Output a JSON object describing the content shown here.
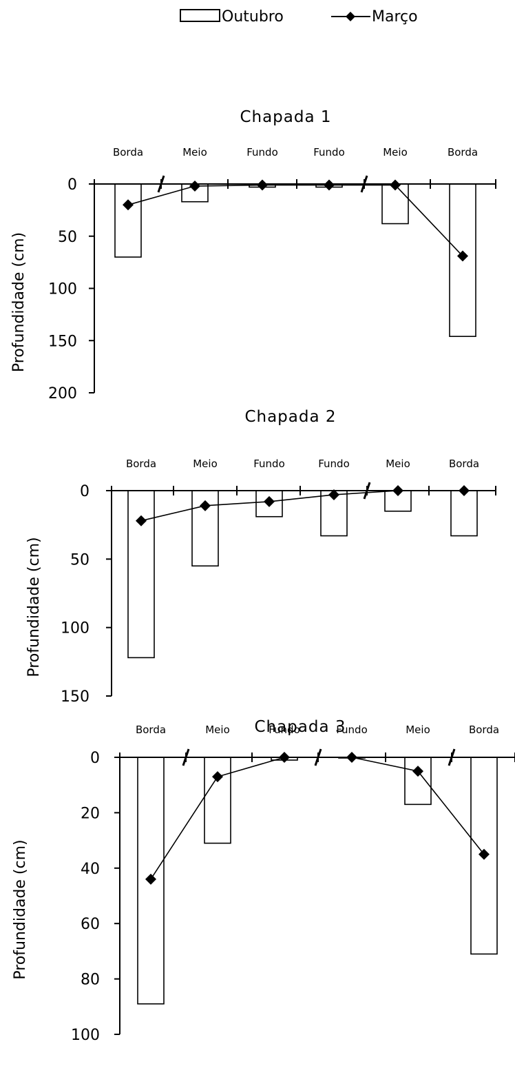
{
  "legend": {
    "bar_label": "Outubro",
    "line_label": "Março"
  },
  "chart_data": [
    {
      "type": "bar",
      "title": "Chapada 1",
      "categories": [
        "Borda",
        "Meio",
        "Fundo",
        "Fundo",
        "Meio",
        "Borda"
      ],
      "series": [
        {
          "name": "Outubro",
          "type": "bar",
          "values": [
            70,
            17,
            3,
            3,
            38,
            146
          ]
        },
        {
          "name": "Março",
          "type": "line",
          "values": [
            20,
            2,
            1,
            1,
            1,
            69
          ]
        }
      ],
      "xlabel": "",
      "ylabel": "Profundidade (cm)",
      "ylim": [
        0,
        200
      ],
      "yticks": [
        0,
        50,
        100,
        150,
        200
      ],
      "y_inverted": true,
      "grid": false,
      "legend_position": "top"
    },
    {
      "type": "bar",
      "title": "Chapada 2",
      "categories": [
        "Borda",
        "Meio",
        "Fundo",
        "Fundo",
        "Meio",
        "Borda"
      ],
      "series": [
        {
          "name": "Outubro",
          "type": "bar",
          "values": [
            122,
            55,
            19,
            33,
            15,
            33
          ]
        },
        {
          "name": "Março",
          "type": "line",
          "values": [
            22,
            11,
            8,
            3,
            0,
            0
          ]
        }
      ],
      "xlabel": "",
      "ylabel": "Profundidade (cm)",
      "ylim": [
        0,
        150
      ],
      "yticks": [
        0,
        50,
        100,
        150
      ],
      "y_inverted": true,
      "grid": false,
      "legend_position": "top"
    },
    {
      "type": "bar",
      "title": "Chapada 3",
      "categories": [
        "Borda",
        "Meio",
        "Fundo",
        "Fundo",
        "Meio",
        "Borda"
      ],
      "series": [
        {
          "name": "Outubro",
          "type": "bar",
          "values": [
            89,
            31,
            1,
            0,
            17,
            71
          ]
        },
        {
          "name": "Março",
          "type": "line",
          "values": [
            44,
            7,
            0,
            0,
            5,
            35
          ]
        }
      ],
      "xlabel": "",
      "ylabel": "Profundidade (cm)",
      "ylim": [
        0,
        100
      ],
      "yticks": [
        0,
        20,
        40,
        60,
        80,
        100
      ],
      "y_inverted": true,
      "grid": false,
      "legend_position": "top"
    }
  ]
}
